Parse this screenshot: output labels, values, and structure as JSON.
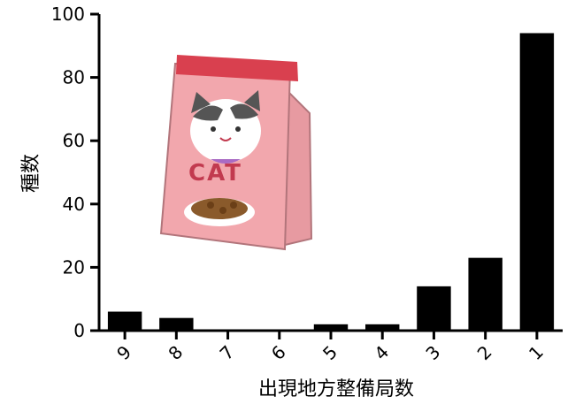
{
  "chart_data": {
    "type": "bar",
    "categories": [
      "9",
      "8",
      "7",
      "6",
      "5",
      "4",
      "3",
      "2",
      "1"
    ],
    "values": [
      6,
      4,
      0,
      0,
      2,
      2,
      14,
      23,
      94
    ],
    "xlabel": "出現地方整備局数",
    "ylabel": "種数",
    "ylim": [
      0,
      100
    ],
    "yticks": [
      0,
      20,
      40,
      60,
      80,
      100
    ],
    "grid": false,
    "bar_color": "#000000"
  },
  "illustration": {
    "icon": "cat-food-bag-icon",
    "bag_text": "CAT",
    "colors": {
      "bag": "#f2a7ad",
      "band": "#d9404f",
      "outline": "#b2757b"
    }
  }
}
